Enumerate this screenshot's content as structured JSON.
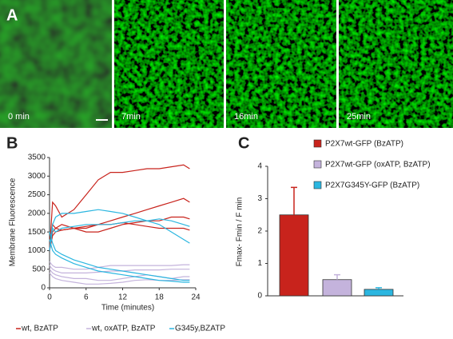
{
  "panel_labels": [
    "A",
    "B",
    "C"
  ],
  "micrographs": {
    "labels": [
      "0 min",
      "7min",
      "16min",
      "25min"
    ]
  },
  "chart_data": [
    {
      "type": "line",
      "ylabel": "Membrane Fluorescence",
      "xlabel": "Time (minutes)",
      "x": [
        0,
        0.5,
        1,
        2,
        4,
        6,
        8,
        10,
        12,
        14,
        16,
        18,
        20,
        22,
        23
      ],
      "xlim": [
        0,
        24
      ],
      "xticks": [
        0,
        6,
        12,
        18,
        24
      ],
      "ylim": [
        0,
        3500
      ],
      "yticks": [
        0,
        500,
        1000,
        1500,
        2000,
        2500,
        3000,
        3500
      ],
      "series": [
        {
          "name": "wt, BzATP",
          "color": "#c8231c",
          "traces": [
            [
              1000,
              2300,
              2200,
              1900,
              2100,
              2500,
              2900,
              3100,
              3100,
              3150,
              3200,
              3200,
              3250,
              3300,
              3200
            ],
            [
              1000,
              1700,
              1600,
              1550,
              1600,
              1600,
              1700,
              1800,
              1900,
              2000,
              2100,
              2200,
              2300,
              2400,
              2300
            ],
            [
              1000,
              1500,
              1600,
              1700,
              1600,
              1500,
              1500,
              1600,
              1700,
              1750,
              1800,
              1800,
              1900,
              1900,
              1850
            ],
            [
              1000,
              1400,
              1500,
              1550,
              1600,
              1650,
              1700,
              1700,
              1750,
              1700,
              1650,
              1600,
              1600,
              1600,
              1550
            ]
          ]
        },
        {
          "name": "wt, oxATP, BzATP",
          "color": "#c4b3dc",
          "traces": [
            [
              700,
              600,
              550,
              550,
              500,
              500,
              550,
              600,
              600,
              600,
              600,
              600,
              600,
              620,
              620
            ],
            [
              600,
              500,
              450,
              400,
              400,
              400,
              420,
              450,
              450,
              480,
              480,
              480,
              500,
              500,
              500
            ],
            [
              500,
              400,
              350,
              300,
              250,
              250,
              200,
              200,
              250,
              300,
              350,
              300,
              250,
              300,
              300
            ],
            [
              400,
              300,
              250,
              200,
              150,
              100,
              100,
              120,
              150,
              200,
              220,
              200,
              200,
              220,
              220
            ]
          ]
        },
        {
          "name": "G345y,BZATP",
          "color": "#2bb6e0",
          "traces": [
            [
              1000,
              1700,
              1900,
              2000,
              2000,
              2050,
              2100,
              2050,
              2000,
              1900,
              1800,
              1700,
              1500,
              1300,
              1200
            ],
            [
              1000,
              1600,
              1500,
              1600,
              1650,
              1700,
              1700,
              1700,
              1750,
              1800,
              1800,
              1850,
              1800,
              1700,
              1650
            ],
            [
              1500,
              1200,
              1000,
              900,
              750,
              650,
              550,
              500,
              450,
              400,
              350,
              300,
              250,
              200,
              200
            ],
            [
              1300,
              1000,
              900,
              800,
              650,
              550,
              450,
              400,
              350,
              300,
              250,
              200,
              180,
              150,
              150
            ]
          ]
        }
      ]
    },
    {
      "type": "bar",
      "ylabel": "Fmax- Fmin / F min",
      "categories": [
        "P2X7wt-GFP (BzATP)",
        "P2X7wt-GFP (oxATP, BzATP)",
        "P2X7G345Y-GFP (BzATP)"
      ],
      "colors": [
        "#c8231c",
        "#c4b3dc",
        "#2bb6e0"
      ],
      "values": [
        2.5,
        0.5,
        0.2
      ],
      "errors": [
        0.85,
        0.15,
        0.05
      ],
      "ylim": [
        0,
        4
      ],
      "yticks": [
        0,
        1,
        2,
        3,
        4
      ]
    }
  ]
}
